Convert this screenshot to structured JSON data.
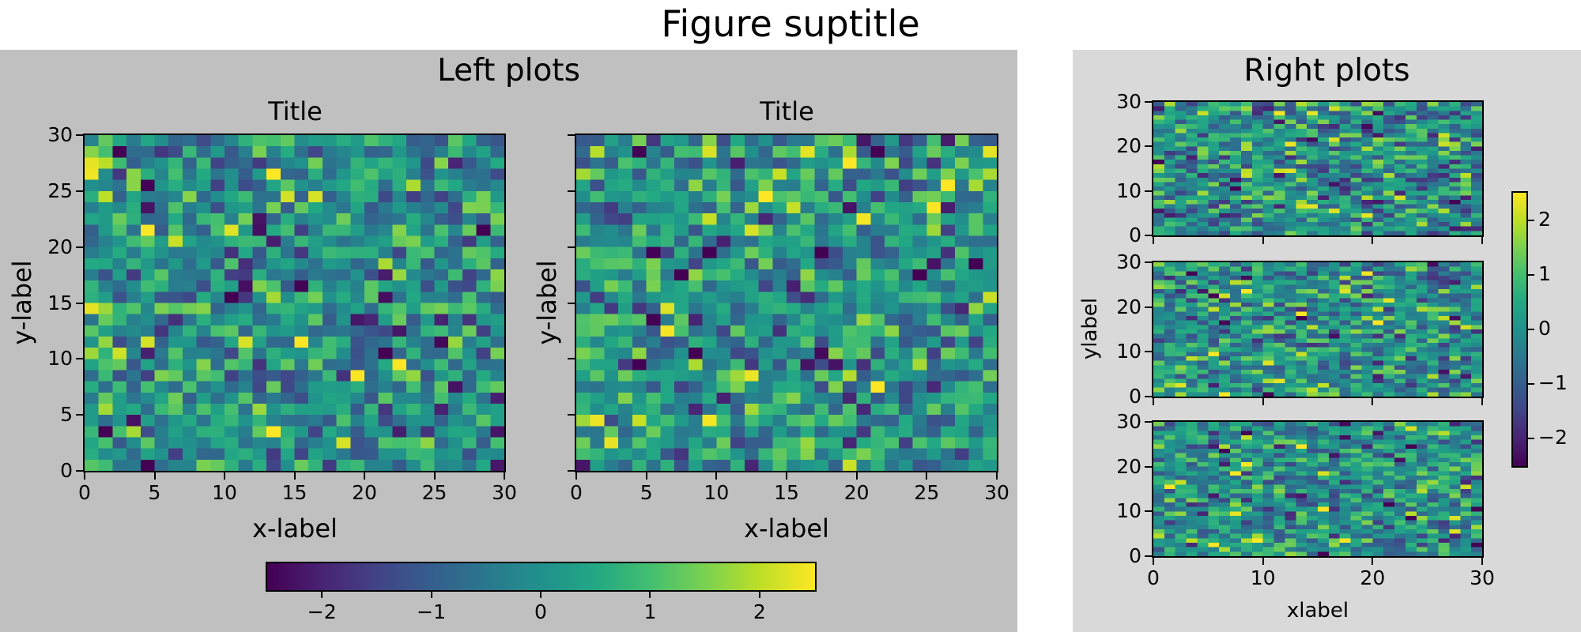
{
  "figure": {
    "suptitle": "Figure suptitle",
    "background": "#ffffff"
  },
  "left": {
    "title": "Left plots",
    "facecolor": "#c0c0c0",
    "axes": [
      {
        "title": "Title",
        "xlabel": "x-label",
        "ylabel": "y-label"
      },
      {
        "title": "Title",
        "xlabel": "x-label",
        "ylabel": "y-label"
      }
    ],
    "xticks": [
      "0",
      "5",
      "10",
      "15",
      "20",
      "25",
      "30"
    ],
    "yticks": [
      "0",
      "5",
      "10",
      "15",
      "20",
      "25",
      "30"
    ],
    "colorbar": {
      "ticks": [
        "−2",
        "−1",
        "0",
        "1",
        "2"
      ],
      "orientation": "horizontal"
    }
  },
  "right": {
    "title": "Right plots",
    "facecolor": "#d9d9d9",
    "xlabel": "xlabel",
    "ylabel": "ylabel",
    "xticks": [
      "0",
      "10",
      "20",
      "30"
    ],
    "yticks": [
      "0",
      "10",
      "20",
      "30"
    ],
    "colorbar": {
      "ticks": [
        "−2",
        "−1",
        "0",
        "1",
        "2"
      ],
      "orientation": "vertical"
    }
  },
  "chart_data": [
    {
      "type": "heatmap",
      "title": "Title",
      "xlabel": "x-label",
      "ylabel": "y-label",
      "xlim": [
        0,
        30
      ],
      "ylim": [
        0,
        30
      ],
      "shape": [
        30,
        30
      ],
      "colormap": "viridis",
      "vmin": -2.5,
      "vmax": 2.5,
      "distribution": "standard normal random",
      "seed": 11
    },
    {
      "type": "heatmap",
      "title": "Title",
      "xlabel": "x-label",
      "ylabel": "y-label",
      "xlim": [
        0,
        30
      ],
      "ylim": [
        0,
        30
      ],
      "shape": [
        30,
        30
      ],
      "colormap": "viridis",
      "vmin": -2.5,
      "vmax": 2.5,
      "distribution": "standard normal random",
      "seed": 23
    },
    {
      "type": "heatmap",
      "title": "",
      "xlabel": "",
      "ylabel": "",
      "xlim": [
        0,
        30
      ],
      "ylim": [
        0,
        30
      ],
      "shape": [
        30,
        30
      ],
      "colormap": "viridis",
      "vmin": -2.5,
      "vmax": 2.5,
      "distribution": "standard normal random",
      "seed": 37
    },
    {
      "type": "heatmap",
      "title": "",
      "xlabel": "",
      "ylabel": "ylabel",
      "xlim": [
        0,
        30
      ],
      "ylim": [
        0,
        30
      ],
      "shape": [
        30,
        30
      ],
      "colormap": "viridis",
      "vmin": -2.5,
      "vmax": 2.5,
      "distribution": "standard normal random",
      "seed": 41
    },
    {
      "type": "heatmap",
      "title": "",
      "xlabel": "xlabel",
      "ylabel": "",
      "xlim": [
        0,
        30
      ],
      "ylim": [
        0,
        30
      ],
      "shape": [
        30,
        30
      ],
      "colormap": "viridis",
      "vmin": -2.5,
      "vmax": 2.5,
      "distribution": "standard normal random",
      "seed": 53
    }
  ],
  "colormap_viridis": [
    "#440154",
    "#482475",
    "#414487",
    "#355f8d",
    "#2a788e",
    "#21918c",
    "#22a884",
    "#44bf70",
    "#7ad151",
    "#bddf26",
    "#fde725"
  ]
}
